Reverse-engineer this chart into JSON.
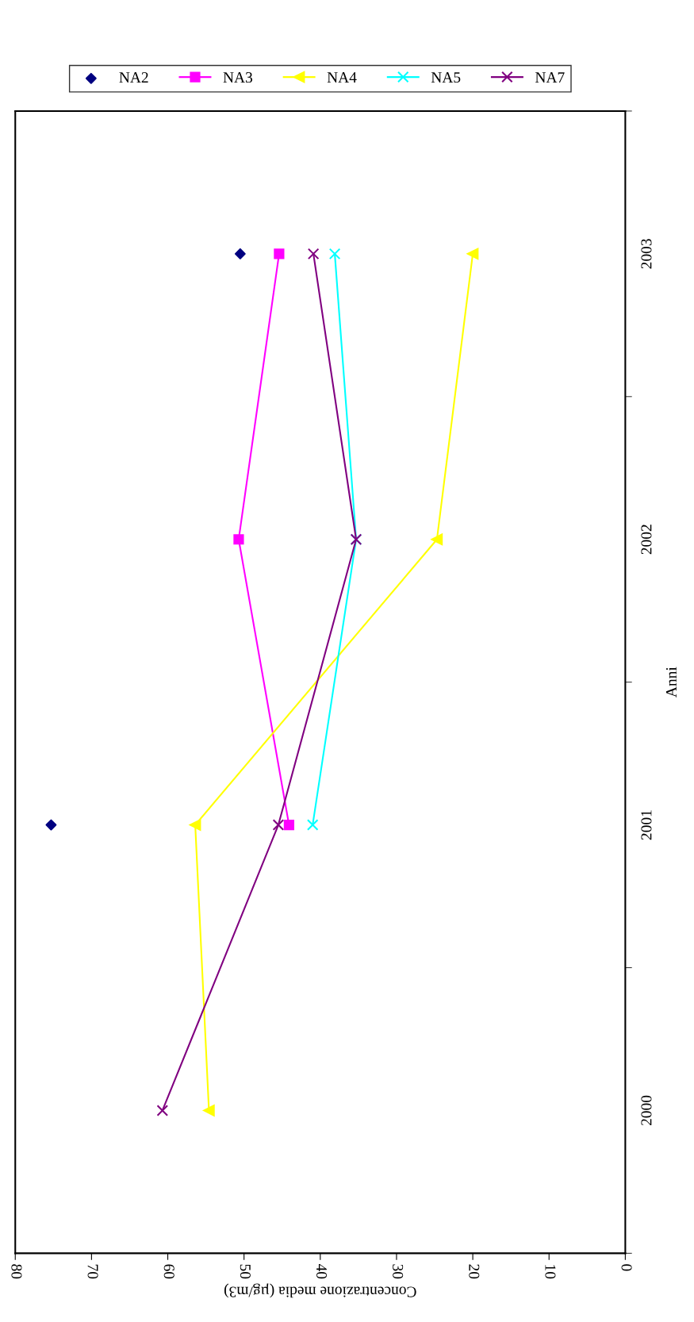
{
  "chart_data": {
    "type": "line",
    "orientation": "horizontal",
    "xlabel": "Concentrazione media (µg/m3)",
    "ylabel": "Anni",
    "categories": [
      "2003",
      "2002",
      "2001",
      "2000"
    ],
    "xlim": [
      80,
      0
    ],
    "xticks": [
      0,
      10,
      20,
      30,
      40,
      50,
      60,
      70,
      80
    ],
    "grid": false,
    "legend": "top",
    "series": [
      {
        "name": "NA2",
        "type": "scatter",
        "color": "#000080",
        "marker": "diamond",
        "values": [
          50.5,
          null,
          75.3,
          null
        ]
      },
      {
        "name": "NA3",
        "color": "#ff00ff",
        "marker": "square",
        "values": [
          45.4,
          50.7,
          44.1,
          null
        ]
      },
      {
        "name": "NA4",
        "color": "#ffff00",
        "marker": "triangle",
        "values": [
          20.0,
          24.7,
          56.4,
          54.6
        ]
      },
      {
        "name": "NA5",
        "color": "#00ffff",
        "marker": "cross",
        "values": [
          38.1,
          35.3,
          41.0,
          null
        ]
      },
      {
        "name": "NA7",
        "color": "#800080",
        "marker": "cross",
        "values": [
          40.9,
          35.3,
          45.5,
          60.7
        ]
      }
    ]
  }
}
